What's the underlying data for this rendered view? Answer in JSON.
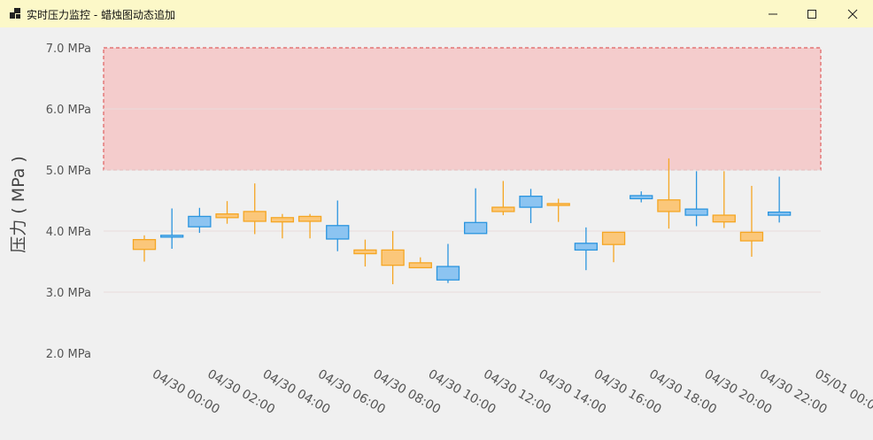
{
  "window": {
    "title": "实时压力监控 - 蜡烛图动态追加",
    "icon": "app-icon",
    "buttons": [
      "minimize-icon",
      "maximize-icon",
      "close-icon"
    ]
  },
  "chart_data": {
    "type": "candlestick",
    "title": "",
    "ylabel": "压力 ( MPa )",
    "xlabel": "",
    "ylim": [
      2.0,
      7.0
    ],
    "y_ticks": [
      "2.0 MPa",
      "3.0 MPa",
      "4.0 MPa",
      "5.0 MPa",
      "6.0 MPa",
      "7.0 MPa"
    ],
    "y_tick_values": [
      2.0,
      3.0,
      4.0,
      5.0,
      6.0,
      7.0
    ],
    "x_ticks": [
      "04/30 00:00",
      "04/30 02:00",
      "04/30 04:00",
      "04/30 06:00",
      "04/30 08:00",
      "04/30 10:00",
      "04/30 12:00",
      "04/30 14:00",
      "04/30 16:00",
      "04/30 18:00",
      "04/30 20:00",
      "04/30 22:00",
      "05/01 00:00"
    ],
    "threshold_band": {
      "from": 5.0,
      "to": 7.0,
      "fill": "#f4cccc",
      "stroke": "#e06060"
    },
    "colors": {
      "up": "#2b95df",
      "up_fill": "#8cc4f1",
      "down": "#f5a623",
      "down_fill": "#fbc77a"
    },
    "candles": [
      {
        "time": "04/30 00:00",
        "open": 3.86,
        "close": 3.7,
        "high": 3.93,
        "low": 3.5
      },
      {
        "time": "04/30 01:00",
        "open": 3.91,
        "close": 3.93,
        "high": 4.37,
        "low": 3.71
      },
      {
        "time": "04/30 02:00",
        "open": 4.07,
        "close": 4.24,
        "high": 4.38,
        "low": 3.97
      },
      {
        "time": "04/30 03:00",
        "open": 4.28,
        "close": 4.22,
        "high": 4.49,
        "low": 4.12
      },
      {
        "time": "04/30 04:00",
        "open": 4.32,
        "close": 4.16,
        "high": 4.78,
        "low": 3.95
      },
      {
        "time": "04/30 05:00",
        "open": 4.22,
        "close": 4.15,
        "high": 4.28,
        "low": 3.88
      },
      {
        "time": "04/30 06:00",
        "open": 4.24,
        "close": 4.16,
        "high": 4.28,
        "low": 3.88
      },
      {
        "time": "04/30 07:00",
        "open": 3.87,
        "close": 4.09,
        "high": 4.5,
        "low": 3.67
      },
      {
        "time": "04/30 08:00",
        "open": 3.69,
        "close": 3.63,
        "high": 3.86,
        "low": 3.42
      },
      {
        "time": "04/30 09:00",
        "open": 3.69,
        "close": 3.44,
        "high": 4.0,
        "low": 3.13
      },
      {
        "time": "04/30 10:00",
        "open": 3.48,
        "close": 3.4,
        "high": 3.57,
        "low": 3.4
      },
      {
        "time": "04/30 11:00",
        "open": 3.2,
        "close": 3.42,
        "high": 3.79,
        "low": 3.15
      },
      {
        "time": "04/30 12:00",
        "open": 3.96,
        "close": 4.14,
        "high": 4.7,
        "low": 3.96
      },
      {
        "time": "04/30 13:00",
        "open": 4.39,
        "close": 4.32,
        "high": 4.82,
        "low": 4.26
      },
      {
        "time": "04/30 14:00",
        "open": 4.39,
        "close": 4.57,
        "high": 4.69,
        "low": 4.13
      },
      {
        "time": "04/30 15:00",
        "open": 4.45,
        "close": 4.42,
        "high": 4.53,
        "low": 4.15
      },
      {
        "time": "04/30 16:00",
        "open": 3.69,
        "close": 3.8,
        "high": 4.06,
        "low": 3.36
      },
      {
        "time": "04/30 17:00",
        "open": 3.98,
        "close": 3.78,
        "high": 3.98,
        "low": 3.49
      },
      {
        "time": "04/30 18:00",
        "open": 4.53,
        "close": 4.58,
        "high": 4.65,
        "low": 4.47
      },
      {
        "time": "04/30 19:00",
        "open": 4.51,
        "close": 4.32,
        "high": 5.19,
        "low": 4.04
      },
      {
        "time": "04/30 20:00",
        "open": 4.26,
        "close": 4.36,
        "high": 4.98,
        "low": 4.08
      },
      {
        "time": "04/30 21:00",
        "open": 4.26,
        "close": 4.15,
        "high": 4.98,
        "low": 4.05
      },
      {
        "time": "04/30 22:00",
        "open": 3.98,
        "close": 3.84,
        "high": 4.74,
        "low": 3.58
      },
      {
        "time": "04/30 23:00",
        "open": 4.26,
        "close": 4.31,
        "high": 4.89,
        "low": 4.14
      }
    ]
  }
}
